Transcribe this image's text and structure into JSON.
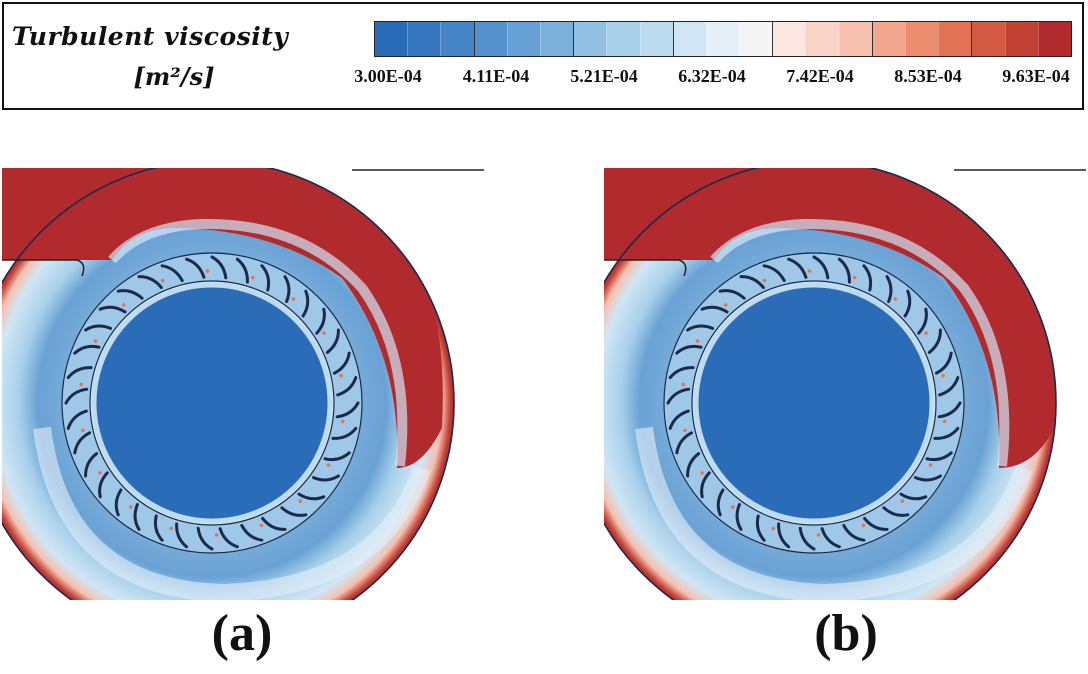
{
  "legend": {
    "title": "Turbulent viscosity",
    "units": "[m²/s]",
    "colors": [
      "#2b6cb8",
      "#3677bf",
      "#4584c6",
      "#5592cd",
      "#67a0d4",
      "#7bb0db",
      "#91c0e3",
      "#a8d0ea",
      "#bddcf0",
      "#d1e6f5",
      "#e4eff8",
      "#f5f5f5",
      "#fbe6e1",
      "#f9d4c8",
      "#f6c0ae",
      "#f2a78e",
      "#ec8d70",
      "#e27356",
      "#d35a43",
      "#c24034",
      "#b02a2e"
    ],
    "ticks": [
      "3.00E-04",
      "4.11E-04",
      "5.21E-04",
      "6.32E-04",
      "7.42E-04",
      "8.53E-04",
      "9.63E-04"
    ]
  },
  "panels": [
    {
      "label": "(a)"
    },
    {
      "label": "(b)"
    }
  ],
  "blade_count": 36
}
